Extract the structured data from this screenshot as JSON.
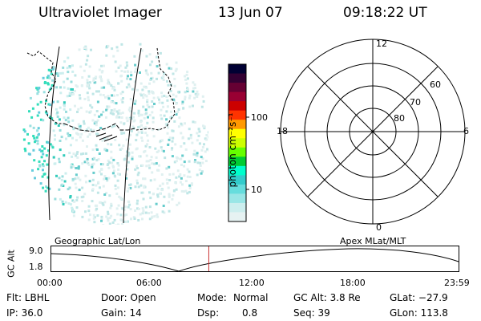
{
  "header": {
    "instrument": "Ultraviolet Imager",
    "date": "13 Jun 07",
    "time": "09:18:22 UT"
  },
  "colorbar": {
    "label": "photon cm⁻²s⁻¹",
    "ticks": [
      "100",
      "10"
    ],
    "scale": "log",
    "colors": [
      "#000033",
      "#330033",
      "#660033",
      "#990033",
      "#cc0000",
      "#ff3300",
      "#ff9900",
      "#ffff00",
      "#ccff00",
      "#66ff00",
      "#00cc33",
      "#00ffcc",
      "#33cccc",
      "#66dddd",
      "#99e6e6",
      "#cceeee",
      "#e6f2f2"
    ]
  },
  "polar_plot": {
    "mlt_labels": [
      "12",
      "18",
      "6",
      "0"
    ],
    "lat_labels": [
      "60",
      "70",
      "80"
    ]
  },
  "panel_labels": {
    "left": "Geographic Lat/Lon",
    "right": "Apex MLat/MLT"
  },
  "altitude_plot": {
    "ylabel": "GC Alt",
    "yticks": [
      "9.0",
      "1.8"
    ],
    "xticks": [
      "00:00",
      "06:00",
      "12:00",
      "18:00",
      "23:59"
    ],
    "marker_time_hours": 9.31,
    "marker_color": "#cc3333"
  },
  "info": {
    "filter": "Flt: LBHL",
    "ip": "IP: 36.0",
    "door": "Door: Open",
    "gain": "Gain: 14",
    "mode_label": "Mode:",
    "mode_value": "Normal",
    "dsp_label": "Dsp:",
    "dsp_value": "0.8",
    "gc_alt": "GC Alt: 3.8 Re",
    "seq": "Seq: 39",
    "glat": "GLat: −27.9",
    "glon": "GLon: 113.8"
  }
}
